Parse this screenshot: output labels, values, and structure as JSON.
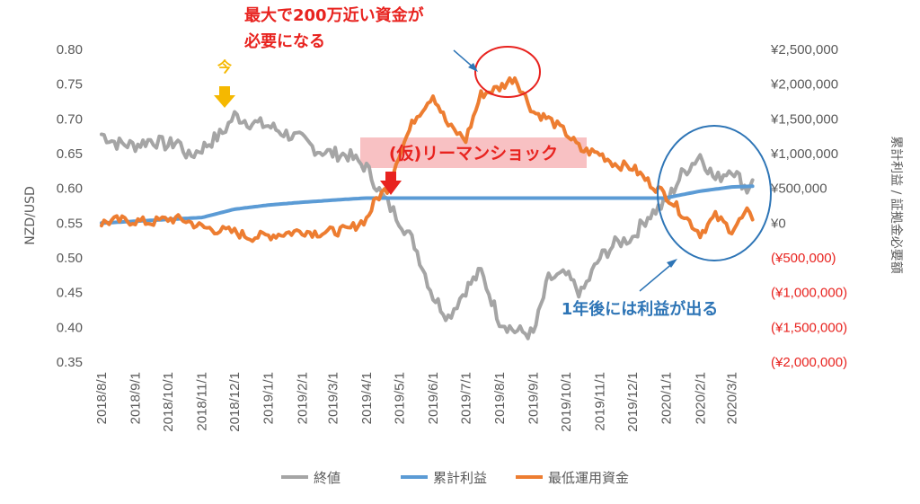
{
  "chart_data": {
    "type": "line",
    "x_dates": [
      "2018/8/1",
      "2018/9/1",
      "2018/10/1",
      "2018/11/1",
      "2018/12/1",
      "2019/1/1",
      "2019/2/1",
      "2019/3/1",
      "2019/4/1",
      "2019/5/1",
      "2019/6/1",
      "2019/7/1",
      "2019/8/1",
      "2019/9/1",
      "2019/10/1",
      "2019/11/1",
      "2019/12/1",
      "2020/1/1",
      "2020/2/1",
      "2020/3/1"
    ],
    "x_tick_labels": [
      "2018/8/1",
      "2018/9/1",
      "2018/10/1",
      "2018/11/1",
      "2018/12/1",
      "2019/1/1",
      "2019/2/1",
      "2019/3/1",
      "2019/4/1",
      "2019/5/1",
      "2019/6/1",
      "2019/7/1",
      "2019/8/1",
      "2019/9/1",
      "2019/10/1",
      "2019/11/1",
      "2019/12/1",
      "2020/1/1",
      "2020/2/1",
      "2020/3/1"
    ],
    "y_left": {
      "label": "NZD/USD",
      "range": [
        0.35,
        0.8
      ],
      "ticks": [
        "0.35",
        "0.40",
        "0.45",
        "0.50",
        "0.55",
        "0.60",
        "0.65",
        "0.70",
        "0.75",
        "0.80"
      ]
    },
    "y_right": {
      "label": "累計利益 / 証拠金必要額",
      "range": [
        -2000000,
        2500000
      ],
      "ticks": [
        "(¥2,000,000)",
        "(¥1,500,000)",
        "(¥1,000,000)",
        "(¥500,000)",
        "¥0",
        "¥500,000",
        "¥1,000,000",
        "¥1,500,000",
        "¥2,000,000",
        "¥2,500,000"
      ]
    },
    "series": [
      {
        "name": "終値",
        "axis": "left",
        "color": "#a5a5a5",
        "x": [
          "2018/8/1",
          "2018/8/15",
          "2018/9/1",
          "2018/9/15",
          "2018/10/1",
          "2018/10/10",
          "2018/10/20",
          "2018/11/1",
          "2018/11/10",
          "2018/11/20",
          "2018/12/1",
          "2018/12/15",
          "2019/1/1",
          "2019/1/15",
          "2019/2/1",
          "2019/2/15",
          "2019/3/1",
          "2019/3/15",
          "2019/4/1",
          "2019/4/15",
          "2019/5/1",
          "2019/5/15",
          "2019/6/1",
          "2019/6/15",
          "2019/7/1",
          "2019/7/15",
          "2019/8/1",
          "2019/8/15",
          "2019/9/1",
          "2019/9/15",
          "2019/10/1",
          "2019/10/15",
          "2019/11/1",
          "2019/11/15",
          "2019/12/1",
          "2019/12/15",
          "2020/1/1",
          "2020/1/15",
          "2020/2/1",
          "2020/2/15",
          "2020/3/1",
          "2020/3/15",
          "2020/3/20"
        ],
        "y": [
          0.678,
          0.665,
          0.662,
          0.67,
          0.662,
          0.668,
          0.645,
          0.658,
          0.668,
          0.68,
          0.705,
          0.695,
          0.69,
          0.68,
          0.67,
          0.655,
          0.65,
          0.648,
          0.63,
          0.59,
          0.555,
          0.52,
          0.445,
          0.415,
          0.455,
          0.48,
          0.41,
          0.395,
          0.39,
          0.47,
          0.475,
          0.448,
          0.5,
          0.52,
          0.53,
          0.56,
          0.58,
          0.62,
          0.648,
          0.612,
          0.63,
          0.598,
          0.612
        ]
      },
      {
        "name": "累計利益",
        "axis": "right",
        "color": "#5b9bd5",
        "x": [
          "2018/8/1",
          "2018/11/1",
          "2018/12/1",
          "2019/1/1",
          "2019/2/1",
          "2019/3/1",
          "2019/3/20",
          "2019/4/1",
          "2019/12/31",
          "2020/1/1",
          "2020/2/1",
          "2020/3/1",
          "2020/3/20"
        ],
        "y": [
          0,
          80000,
          200000,
          260000,
          300000,
          330000,
          350000,
          360000,
          360000,
          365000,
          460000,
          520000,
          530000
        ]
      },
      {
        "name": "最低運用資金",
        "axis": "right",
        "color": "#ed7d31",
        "x": [
          "2018/8/1",
          "2018/8/15",
          "2018/9/1",
          "2018/9/15",
          "2018/10/1",
          "2018/10/15",
          "2018/11/1",
          "2018/11/15",
          "2018/12/1",
          "2018/12/15",
          "2019/1/1",
          "2019/1/15",
          "2019/2/1",
          "2019/2/15",
          "2019/3/1",
          "2019/3/15",
          "2019/4/1",
          "2019/4/10",
          "2019/4/20",
          "2019/5/1",
          "2019/5/15",
          "2019/6/1",
          "2019/6/15",
          "2019/7/1",
          "2019/7/15",
          "2019/8/1",
          "2019/8/15",
          "2019/9/1",
          "2019/9/15",
          "2019/10/1",
          "2019/10/15",
          "2019/11/1",
          "2019/11/15",
          "2019/12/1",
          "2019/12/15",
          "2020/1/1",
          "2020/1/15",
          "2020/2/1",
          "2020/2/15",
          "2020/3/1",
          "2020/3/15",
          "2020/3/20"
        ],
        "y": [
          0,
          40000,
          30000,
          10000,
          60000,
          50000,
          -60000,
          -100000,
          -130000,
          -200000,
          -180000,
          -150000,
          -110000,
          -140000,
          -120000,
          -100000,
          60000,
          350000,
          500000,
          1000000,
          1500000,
          1850000,
          1400000,
          1200000,
          1850000,
          1950000,
          2100000,
          1600000,
          1500000,
          1300000,
          1050000,
          1000000,
          850000,
          800000,
          600000,
          400000,
          150000,
          -150000,
          100000,
          -100000,
          150000,
          50000
        ]
      }
    ],
    "legend": {
      "position": "bottom",
      "entries": [
        "終値",
        "累計利益",
        "最低運用資金"
      ]
    },
    "grid": false
  },
  "annotations": {
    "max_funds": "最大で200万近い資金が\n必要になる",
    "now": "今",
    "lehman": "(仮)リーマンショック",
    "profit": "1年後には利益が出る"
  }
}
